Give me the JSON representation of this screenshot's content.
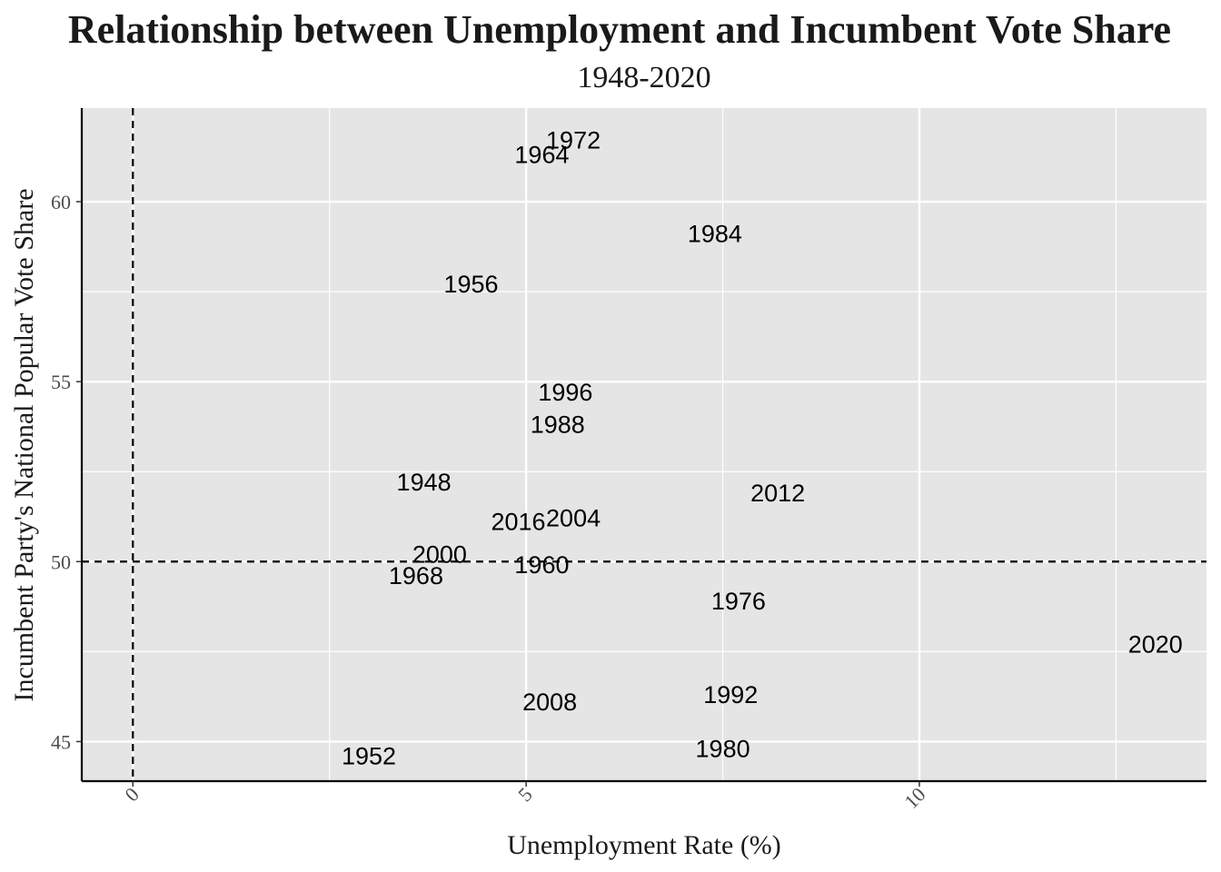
{
  "chart_data": {
    "type": "scatter",
    "title": "Relationship between Unemployment and Incumbent Vote Share",
    "subtitle": "1948-2020",
    "xlabel": "Unemployment Rate (%)",
    "ylabel": "Incumbent Party's National Popular Vote Share",
    "xlim": [
      -0.65,
      13.65
    ],
    "ylim": [
      43.9,
      62.6
    ],
    "x_ticks": [
      0,
      5,
      10
    ],
    "y_ticks": [
      45,
      50,
      55,
      60
    ],
    "reference_lines": {
      "vertical_x": 0,
      "horizontal_y": 50,
      "style": "dashed"
    },
    "grid": true,
    "points": [
      {
        "label": "1948",
        "x": 3.7,
        "y": 52.2
      },
      {
        "label": "1952",
        "x": 3.0,
        "y": 44.6
      },
      {
        "label": "1956",
        "x": 4.3,
        "y": 57.7
      },
      {
        "label": "1960",
        "x": 5.2,
        "y": 49.9
      },
      {
        "label": "1964",
        "x": 5.2,
        "y": 61.3
      },
      {
        "label": "1968",
        "x": 3.6,
        "y": 49.6
      },
      {
        "label": "1972",
        "x": 5.6,
        "y": 61.7
      },
      {
        "label": "1976",
        "x": 7.7,
        "y": 48.9
      },
      {
        "label": "1980",
        "x": 7.5,
        "y": 44.8
      },
      {
        "label": "1984",
        "x": 7.4,
        "y": 59.1
      },
      {
        "label": "1988",
        "x": 5.4,
        "y": 53.8
      },
      {
        "label": "1992",
        "x": 7.6,
        "y": 46.3
      },
      {
        "label": "1996",
        "x": 5.5,
        "y": 54.7
      },
      {
        "label": "2000",
        "x": 3.9,
        "y": 50.2
      },
      {
        "label": "2004",
        "x": 5.6,
        "y": 51.2
      },
      {
        "label": "2008",
        "x": 5.3,
        "y": 46.1
      },
      {
        "label": "2012",
        "x": 8.2,
        "y": 51.9
      },
      {
        "label": "2016",
        "x": 4.9,
        "y": 51.1
      },
      {
        "label": "2020",
        "x": 13.0,
        "y": 47.7
      }
    ],
    "colors": {
      "panel": "#e5e5e5",
      "grid": "#ffffff",
      "axis": "#000000",
      "text": "#000000"
    }
  }
}
